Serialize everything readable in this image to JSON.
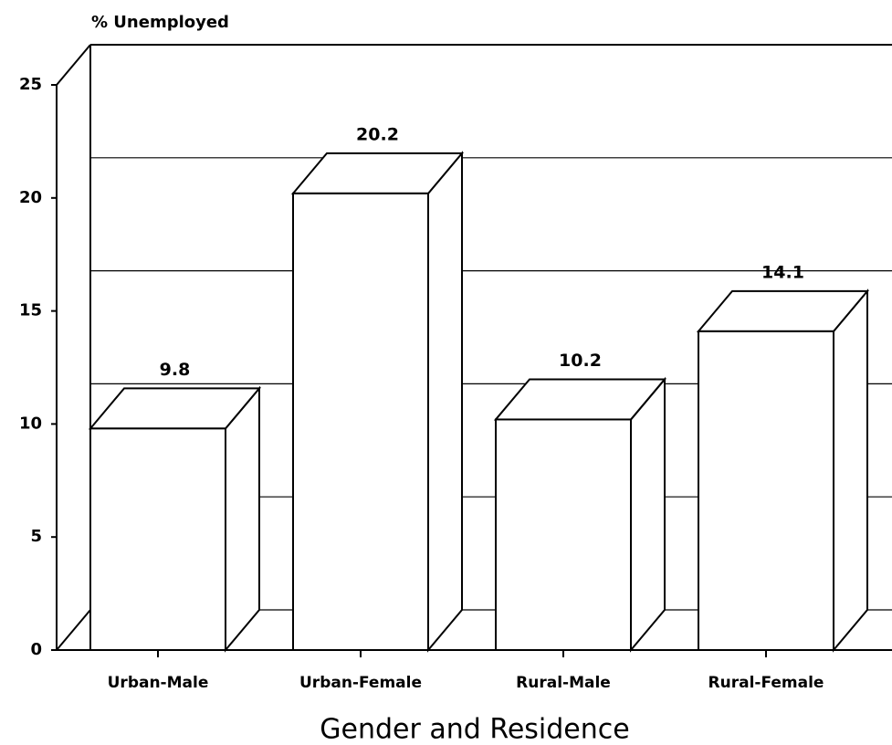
{
  "chart_data": {
    "type": "bar3d",
    "title": "% Unemployed",
    "x_label": "Gender and Residence",
    "categories": [
      "Urban-Male",
      "Urban-Female",
      "Rural-Male",
      "Rural-Female"
    ],
    "values": [
      9.8,
      20.2,
      10.2,
      14.1
    ],
    "color": "#ffffff",
    "ylim": [
      0,
      25
    ],
    "yticks": [
      0,
      5,
      10,
      15,
      20,
      25
    ],
    "grid": true
  }
}
